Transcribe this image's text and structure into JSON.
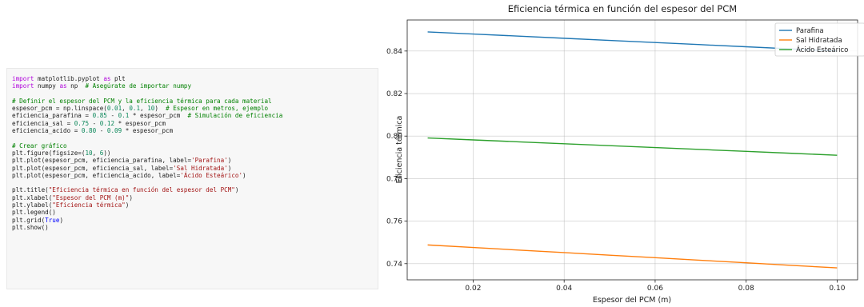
{
  "code": {
    "lines": [
      [
        {
          "t": "import",
          "c": "kw"
        },
        {
          "t": " matplotlib.pyplot ",
          "c": "tx"
        },
        {
          "t": "as",
          "c": "kw"
        },
        {
          "t": " plt",
          "c": "tx"
        }
      ],
      [
        {
          "t": "import",
          "c": "kw"
        },
        {
          "t": " numpy ",
          "c": "tx"
        },
        {
          "t": "as",
          "c": "kw"
        },
        {
          "t": " np  ",
          "c": "tx"
        },
        {
          "t": "# Asegúrate de importar numpy",
          "c": "cm"
        }
      ],
      [],
      [
        {
          "t": "# Definir el espesor del PCM y la eficiencia térmica para cada material",
          "c": "cm"
        }
      ],
      [
        {
          "t": "espesor_pcm = np.linspace(",
          "c": "tx"
        },
        {
          "t": "0.01",
          "c": "nm"
        },
        {
          "t": ", ",
          "c": "tx"
        },
        {
          "t": "0.1",
          "c": "nm"
        },
        {
          "t": ", ",
          "c": "tx"
        },
        {
          "t": "10",
          "c": "nm"
        },
        {
          "t": ")  ",
          "c": "tx"
        },
        {
          "t": "# Espesor en metros, ejemplo",
          "c": "cm"
        }
      ],
      [
        {
          "t": "eficiencia_parafina = ",
          "c": "tx"
        },
        {
          "t": "0.85",
          "c": "nm"
        },
        {
          "t": " - ",
          "c": "tx"
        },
        {
          "t": "0.1",
          "c": "nm"
        },
        {
          "t": " * espesor_pcm  ",
          "c": "tx"
        },
        {
          "t": "# Simulación de eficiencia",
          "c": "cm"
        }
      ],
      [
        {
          "t": "eficiencia_sal = ",
          "c": "tx"
        },
        {
          "t": "0.75",
          "c": "nm"
        },
        {
          "t": " - ",
          "c": "tx"
        },
        {
          "t": "0.12",
          "c": "nm"
        },
        {
          "t": " * espesor_pcm",
          "c": "tx"
        }
      ],
      [
        {
          "t": "eficiencia_acido = ",
          "c": "tx"
        },
        {
          "t": "0.80",
          "c": "nm"
        },
        {
          "t": " - ",
          "c": "tx"
        },
        {
          "t": "0.09",
          "c": "nm"
        },
        {
          "t": " * espesor_pcm",
          "c": "tx"
        }
      ],
      [],
      [
        {
          "t": "# Crear gráfico",
          "c": "cm"
        }
      ],
      [
        {
          "t": "plt.figure(figsize=(",
          "c": "tx"
        },
        {
          "t": "10",
          "c": "nm"
        },
        {
          "t": ", ",
          "c": "tx"
        },
        {
          "t": "6",
          "c": "nm"
        },
        {
          "t": "))",
          "c": "tx"
        }
      ],
      [
        {
          "t": "plt.plot(espesor_pcm, eficiencia_parafina, label=",
          "c": "tx"
        },
        {
          "t": "'Parafina'",
          "c": "st"
        },
        {
          "t": ")",
          "c": "tx"
        }
      ],
      [
        {
          "t": "plt.plot(espesor_pcm, eficiencia_sal, label=",
          "c": "tx"
        },
        {
          "t": "'Sal Hidratada'",
          "c": "st"
        },
        {
          "t": ")",
          "c": "tx"
        }
      ],
      [
        {
          "t": "plt.plot(espesor_pcm, eficiencia_acido, label=",
          "c": "tx"
        },
        {
          "t": "'Ácido Esteárico'",
          "c": "st"
        },
        {
          "t": ")",
          "c": "tx"
        }
      ],
      [],
      [
        {
          "t": "plt.title(",
          "c": "tx"
        },
        {
          "t": "\"Eficiencia térmica en función del espesor del PCM\"",
          "c": "st"
        },
        {
          "t": ")",
          "c": "tx"
        }
      ],
      [
        {
          "t": "plt.xlabel(",
          "c": "tx"
        },
        {
          "t": "\"Espesor del PCM (m)\"",
          "c": "st"
        },
        {
          "t": ")",
          "c": "tx"
        }
      ],
      [
        {
          "t": "plt.ylabel(",
          "c": "tx"
        },
        {
          "t": "\"Eficiencia térmica\"",
          "c": "st"
        },
        {
          "t": ")",
          "c": "tx"
        }
      ],
      [
        {
          "t": "plt.legend()",
          "c": "tx"
        }
      ],
      [
        {
          "t": "plt.grid(",
          "c": "tx"
        },
        {
          "t": "True",
          "c": "kw2"
        },
        {
          "t": ")",
          "c": "tx"
        }
      ],
      [
        {
          "t": "plt.show()",
          "c": "tx"
        }
      ]
    ],
    "colors": {
      "kw": "#af00db",
      "kw2": "#0000ff",
      "tx": "#212121",
      "cm": "#008000",
      "nm": "#098658",
      "st": "#a31515"
    }
  },
  "chart_data": {
    "type": "line",
    "title": "Eficiencia térmica en función del espesor del PCM",
    "xlabel": "Espesor del PCM (m)",
    "ylabel": "Eficiencia térmica",
    "x": [
      0.01,
      0.02,
      0.03,
      0.04,
      0.05,
      0.06,
      0.07,
      0.08,
      0.09,
      0.1
    ],
    "series": [
      {
        "name": "Parafina",
        "color": "#1f77b4",
        "values": [
          0.849,
          0.848,
          0.847,
          0.846,
          0.845,
          0.844,
          0.843,
          0.842,
          0.841,
          0.84
        ]
      },
      {
        "name": "Sal Hidratada",
        "color": "#ff7f0e",
        "values": [
          0.7488,
          0.7476,
          0.7464,
          0.7452,
          0.744,
          0.7428,
          0.7416,
          0.7404,
          0.7392,
          0.738
        ]
      },
      {
        "name": "Ácido Esteárico",
        "color": "#2ca02c",
        "values": [
          0.7991,
          0.7982,
          0.7973,
          0.7964,
          0.7955,
          0.7946,
          0.7937,
          0.7928,
          0.7919,
          0.791
        ]
      }
    ],
    "xticks": [
      "0.02",
      "0.04",
      "0.06",
      "0.08",
      "0.10"
    ],
    "yticks": [
      "0.74",
      "0.76",
      "0.78",
      "0.80",
      "0.82",
      "0.84"
    ],
    "xlim": [
      0.0055,
      0.1045
    ],
    "ylim": [
      0.7324,
      0.8546
    ],
    "grid": true,
    "legend": "top-right"
  }
}
